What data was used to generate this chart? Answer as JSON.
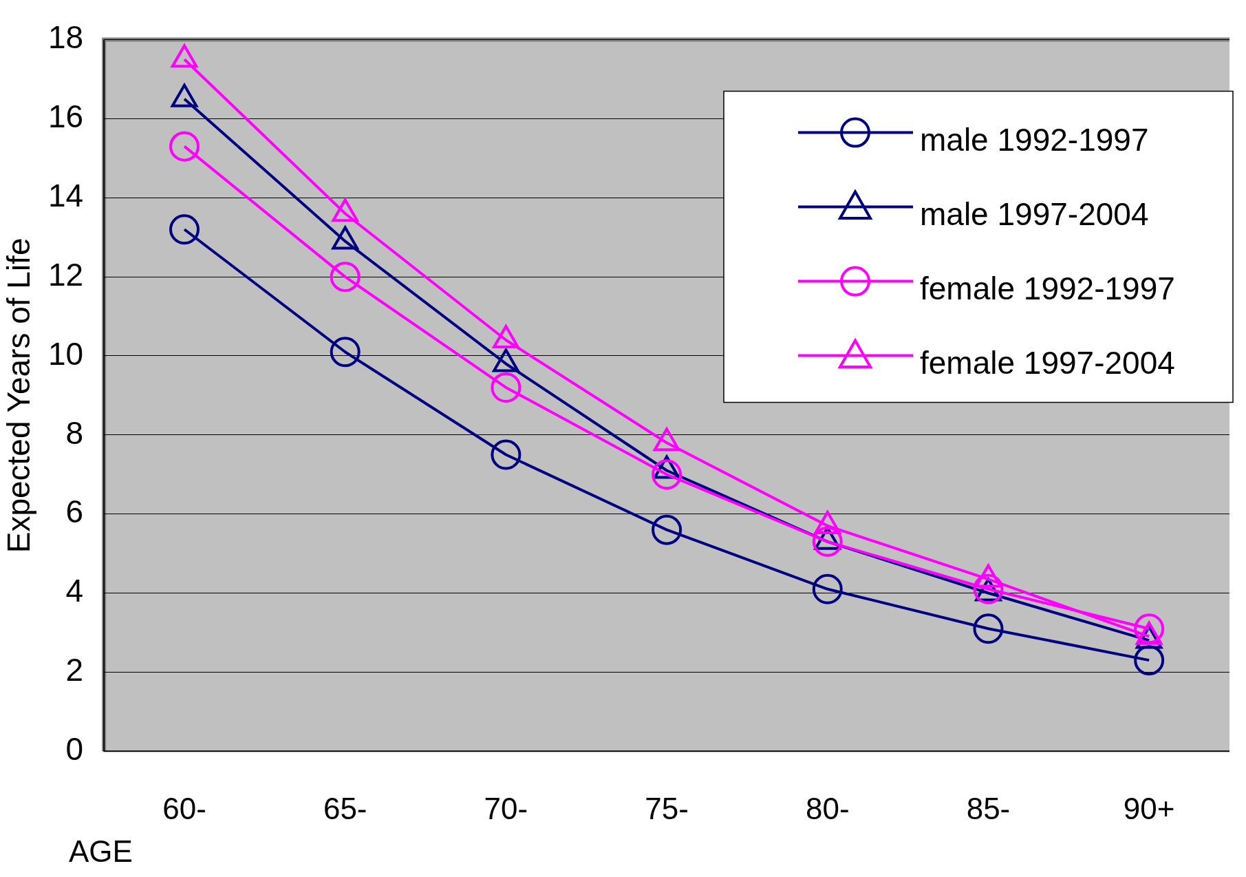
{
  "chart_data": {
    "type": "line",
    "xlabel": "AGE",
    "ylabel": "Expected Years of Life",
    "categories": [
      "60-",
      "65-",
      "70-",
      "75-",
      "80-",
      "85-",
      "90+"
    ],
    "series": [
      {
        "name": "male 1992-1997",
        "color": "#000080",
        "marker": "circle",
        "values": [
          13.2,
          10.1,
          7.5,
          5.6,
          4.1,
          3.1,
          2.3
        ]
      },
      {
        "name": "male 1997-2004",
        "color": "#000080",
        "marker": "triangle",
        "values": [
          16.5,
          12.9,
          9.8,
          7.1,
          5.3,
          4.0,
          2.8
        ]
      },
      {
        "name": "female 1992-1997",
        "color": "#ff00ff",
        "marker": "circle",
        "values": [
          15.3,
          12.0,
          9.2,
          7.0,
          5.3,
          4.1,
          3.1
        ]
      },
      {
        "name": "female 1997-2004",
        "color": "#ff00ff",
        "marker": "triangle",
        "values": [
          17.5,
          13.6,
          10.4,
          7.8,
          5.7,
          4.35,
          2.9
        ]
      }
    ],
    "ylim": [
      0,
      18
    ],
    "yticks": [
      0,
      2,
      4,
      6,
      8,
      10,
      12,
      14,
      16,
      18
    ],
    "grid": "y",
    "legend": "top right"
  }
}
